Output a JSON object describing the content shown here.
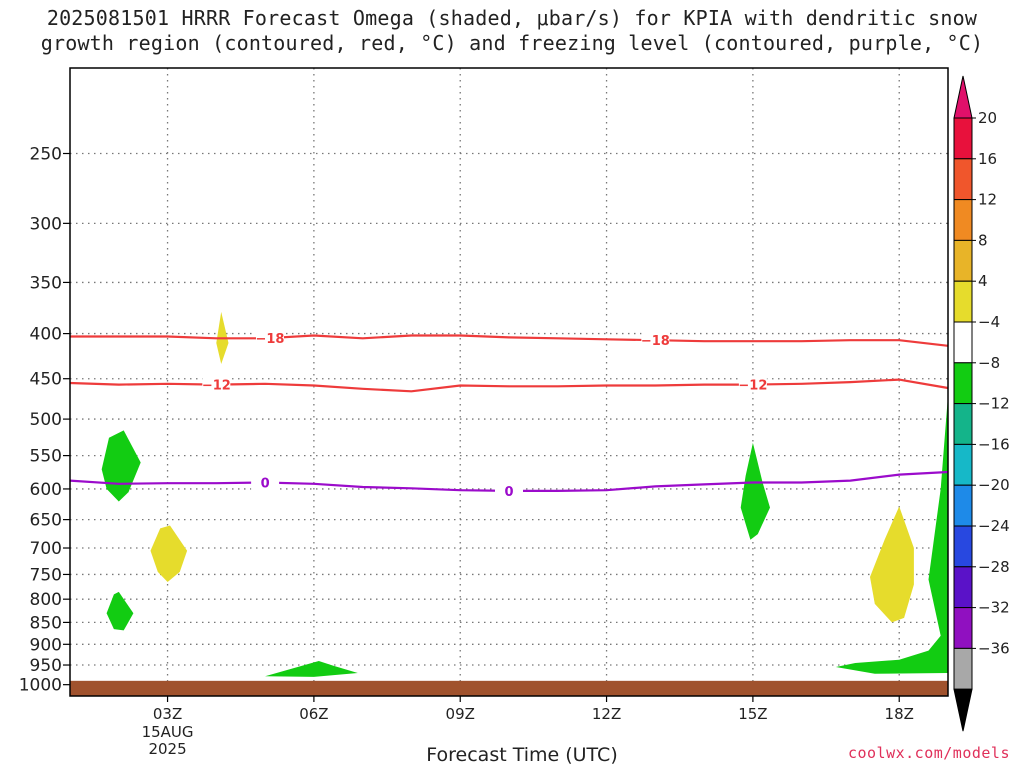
{
  "title": {
    "line1": "2025081501 HRRR Forecast Omega (shaded, μbar/s) for KPIA with dendritic snow",
    "line2": "growth region (contoured, red, °C) and freezing level (contoured, purple, °C)"
  },
  "credit": "coolwx.com/models",
  "chart_data": {
    "type": "time-height contour",
    "xlabel": "Forecast Time (UTC)",
    "x_range_hours": [
      1,
      19
    ],
    "x_ticks": [
      {
        "hour": 3,
        "label": "03Z",
        "sub": [
          "15AUG",
          "2025"
        ]
      },
      {
        "hour": 6,
        "label": "06Z"
      },
      {
        "hour": 9,
        "label": "09Z"
      },
      {
        "hour": 12,
        "label": "12Z"
      },
      {
        "hour": 15,
        "label": "15Z"
      },
      {
        "hour": 18,
        "label": "18Z"
      }
    ],
    "y_pressure_range_hPa": [
      200,
      1030
    ],
    "y_ticks": [
      250,
      300,
      350,
      400,
      450,
      500,
      550,
      600,
      650,
      700,
      750,
      800,
      850,
      900,
      950,
      1000
    ],
    "grid": true,
    "ground_fill": {
      "from_hPa": 990,
      "color": "#a0522d"
    },
    "colorbar": {
      "labels": [
        "20",
        "16",
        "12",
        "8",
        "4",
        "−4",
        "−8",
        "−12",
        "−16",
        "−20",
        "−24",
        "−28",
        "−32",
        "−36"
      ],
      "colors": [
        "#e8113c",
        "#f0562c",
        "#f08a22",
        "#e8b428",
        "#e6dc2c",
        "#ffffff",
        "#12cc12",
        "#14b48a",
        "#16b8c8",
        "#1e8ae8",
        "#2848e0",
        "#5a12c8",
        "#9010c0",
        "#a8a8a8"
      ],
      "top_arrow": "#e0106a",
      "bottom_arrow": "#000000"
    },
    "contours": [
      {
        "label": "−18",
        "color": "#ee3b3b",
        "points": [
          [
            1,
            403
          ],
          [
            2,
            403
          ],
          [
            3,
            403
          ],
          [
            4,
            405
          ],
          [
            5,
            405
          ],
          [
            6,
            402
          ],
          [
            7,
            405
          ],
          [
            8,
            402
          ],
          [
            9,
            402
          ],
          [
            10,
            404
          ],
          [
            11,
            405
          ],
          [
            12,
            406
          ],
          [
            13,
            407
          ],
          [
            14,
            408
          ],
          [
            15,
            408
          ],
          [
            16,
            408
          ],
          [
            17,
            407
          ],
          [
            18,
            407
          ],
          [
            19,
            413
          ]
        ],
        "label_hours": [
          5.1,
          13.0
        ]
      },
      {
        "label": "−12",
        "color": "#ee3b3b",
        "points": [
          [
            1,
            455
          ],
          [
            2,
            457
          ],
          [
            3,
            456
          ],
          [
            4,
            457
          ],
          [
            5,
            456
          ],
          [
            6,
            458
          ],
          [
            7,
            462
          ],
          [
            8,
            465
          ],
          [
            9,
            458
          ],
          [
            10,
            459
          ],
          [
            11,
            459
          ],
          [
            12,
            458
          ],
          [
            13,
            458
          ],
          [
            14,
            457
          ],
          [
            15,
            457
          ],
          [
            16,
            456
          ],
          [
            17,
            454
          ],
          [
            18,
            451
          ],
          [
            19,
            461
          ]
        ],
        "label_hours": [
          4.0,
          15.0
        ]
      },
      {
        "label": "0",
        "color": "#9b0bcb",
        "points": [
          [
            1,
            587
          ],
          [
            2,
            592
          ],
          [
            3,
            591
          ],
          [
            4,
            591
          ],
          [
            5,
            590
          ],
          [
            6,
            592
          ],
          [
            7,
            597
          ],
          [
            8,
            599
          ],
          [
            9,
            602
          ],
          [
            10,
            603
          ],
          [
            11,
            603
          ],
          [
            12,
            602
          ],
          [
            13,
            596
          ],
          [
            14,
            593
          ],
          [
            15,
            590
          ],
          [
            16,
            590
          ],
          [
            17,
            587
          ],
          [
            18,
            578
          ],
          [
            19,
            574
          ]
        ],
        "label_hours": [
          5.0,
          10.0
        ]
      }
    ],
    "omega_regions": [
      {
        "value": "−4 to −8",
        "color": "#12cc12",
        "points": [
          [
            1.65,
            570
          ],
          [
            1.8,
            525
          ],
          [
            2.1,
            515
          ],
          [
            2.45,
            560
          ],
          [
            2.2,
            605
          ],
          [
            2.0,
            620
          ],
          [
            1.75,
            600
          ]
        ]
      },
      {
        "value": "−4 to −8",
        "color": "#12cc12",
        "points": [
          [
            1.75,
            830
          ],
          [
            1.9,
            790
          ],
          [
            2.0,
            785
          ],
          [
            2.3,
            830
          ],
          [
            2.1,
            868
          ],
          [
            1.9,
            865
          ]
        ]
      },
      {
        "value": "4 to 8",
        "color": "#e6dc2c",
        "points": [
          [
            4.0,
            410
          ],
          [
            4.1,
            378
          ],
          [
            4.25,
            410
          ],
          [
            4.1,
            433
          ]
        ]
      },
      {
        "value": "4 to 8",
        "color": "#e6dc2c",
        "points": [
          [
            2.65,
            705
          ],
          [
            2.85,
            665
          ],
          [
            3.05,
            660
          ],
          [
            3.4,
            705
          ],
          [
            3.25,
            745
          ],
          [
            3.0,
            765
          ],
          [
            2.8,
            745
          ]
        ]
      },
      {
        "value": "−4 to −8",
        "color": "#12cc12",
        "points": [
          [
            5.0,
            978
          ],
          [
            6.1,
            940
          ],
          [
            6.4,
            952
          ],
          [
            6.9,
            970
          ],
          [
            6.0,
            980
          ]
        ]
      },
      {
        "value": "−4 to −8",
        "color": "#12cc12",
        "points": [
          [
            14.75,
            630
          ],
          [
            14.85,
            580
          ],
          [
            15.0,
            532
          ],
          [
            15.2,
            590
          ],
          [
            15.35,
            630
          ],
          [
            15.1,
            675
          ],
          [
            14.95,
            685
          ]
        ]
      },
      {
        "value": "4 to 8",
        "color": "#e6dc2c",
        "points": [
          [
            17.4,
            755
          ],
          [
            17.7,
            685
          ],
          [
            18.0,
            628
          ],
          [
            18.3,
            700
          ],
          [
            18.3,
            770
          ],
          [
            18.1,
            840
          ],
          [
            17.85,
            850
          ],
          [
            17.5,
            810
          ]
        ]
      },
      {
        "value": "−4 to −8",
        "color": "#12cc12",
        "points": [
          [
            16.7,
            955
          ],
          [
            17.1,
            945
          ],
          [
            18.0,
            937
          ],
          [
            18.6,
            915
          ],
          [
            18.85,
            880
          ],
          [
            18.6,
            760
          ],
          [
            18.85,
            600
          ],
          [
            19.0,
            470
          ],
          [
            19.0,
            970
          ],
          [
            17.5,
            972
          ]
        ]
      }
    ]
  }
}
